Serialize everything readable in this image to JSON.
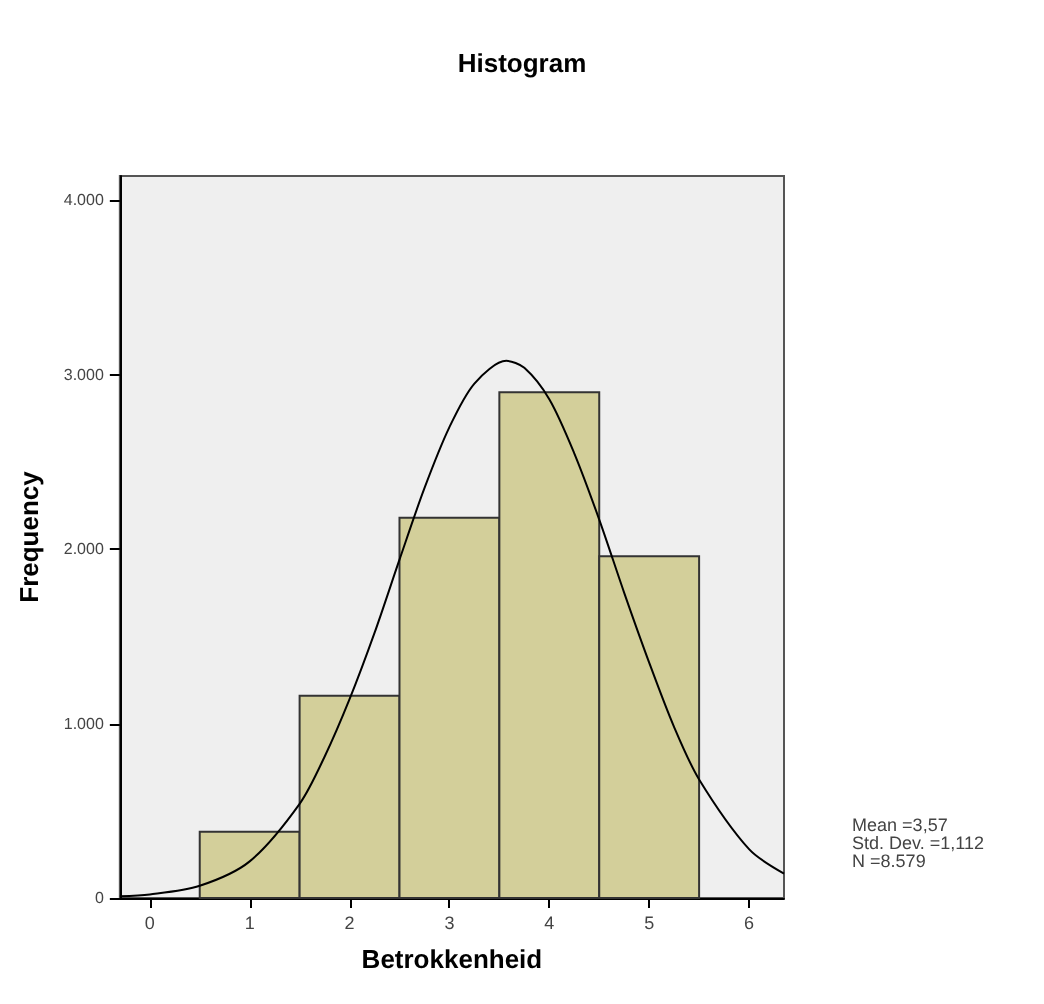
{
  "chart_data": {
    "type": "histogram",
    "title": "Histogram",
    "xlabel": "Betrokkenheid",
    "ylabel": "Frequency",
    "bins": [
      0.5,
      1.5,
      2.5,
      3.5,
      4.5,
      5.5
    ],
    "series": [
      {
        "type": "histogram",
        "color": "#d3cf9a",
        "values": [
          380,
          1160,
          2180,
          2900,
          1960
        ]
      },
      {
        "type": "line",
        "color": "#000000",
        "x": [
          -0.3,
          0,
          0.5,
          1,
          1.5,
          1.75,
          2,
          2.25,
          2.5,
          2.75,
          3,
          3.25,
          3.57,
          3.75,
          4,
          4.25,
          4.5,
          4.75,
          5,
          5.25,
          5.5,
          6,
          6.35
        ],
        "values": [
          10,
          20,
          70,
          210,
          540,
          810,
          1140,
          1520,
          1940,
          2350,
          2700,
          2950,
          3080,
          3040,
          2860,
          2550,
          2170,
          1750,
          1350,
          980,
          680,
          280,
          140
        ]
      }
    ],
    "xlim": [
      -0.3,
      6.35
    ],
    "xticks": [
      0,
      1,
      2,
      3,
      4,
      5,
      6
    ],
    "ylim": [
      0,
      4140
    ],
    "yticks": [
      0,
      {
        "value": 1000,
        "label": "1.000"
      },
      {
        "value": 2000,
        "label": "2.000"
      },
      {
        "value": 3000,
        "label": "3.000"
      },
      {
        "value": 4000,
        "label": "4.000"
      }
    ],
    "grid": false,
    "marker": "none",
    "line_style": "solid",
    "annotations": [
      "Mean =3,57\nStd. Dev. =1,112\nN =8.579"
    ]
  }
}
